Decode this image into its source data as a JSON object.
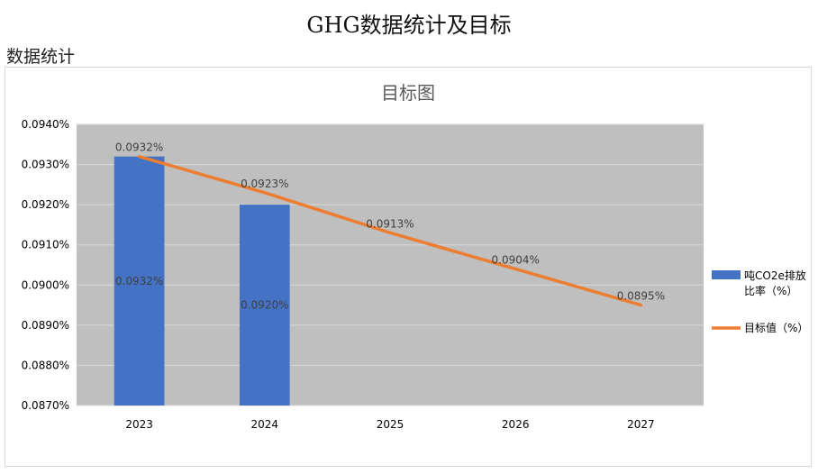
{
  "page": {
    "title": "GHG数据统计及目标",
    "section_label": "数据统计"
  },
  "chart_data": {
    "type": "bar",
    "title": "目标图",
    "categories": [
      "2023",
      "2024",
      "2025",
      "2026",
      "2027"
    ],
    "ylim": [
      0.087,
      0.094
    ],
    "yticks": [
      "0.0870%",
      "0.0880%",
      "0.0890%",
      "0.0900%",
      "0.0910%",
      "0.0920%",
      "0.0930%",
      "0.0940%"
    ],
    "ytick_values": [
      0.087,
      0.088,
      0.089,
      0.09,
      0.091,
      0.092,
      0.093,
      0.094
    ],
    "grid": true,
    "legend_position": "right",
    "plot_background": "#bfbfbf",
    "series": [
      {
        "name": "吨CO2e排放比率（%）",
        "type": "bar",
        "color": "#4472c4",
        "values": [
          0.0932,
          0.092,
          null,
          null,
          null
        ],
        "labels": [
          "0.0932%",
          "0.0920%",
          null,
          null,
          null
        ]
      },
      {
        "name": "目标值（%）",
        "type": "line",
        "color": "#ed7d31",
        "values": [
          0.0932,
          0.0923,
          0.0913,
          0.0904,
          0.0895
        ],
        "labels": [
          "0.0932%",
          "0.0923%",
          "0.0913%",
          "0.0904%",
          "0.0895%"
        ]
      }
    ]
  }
}
